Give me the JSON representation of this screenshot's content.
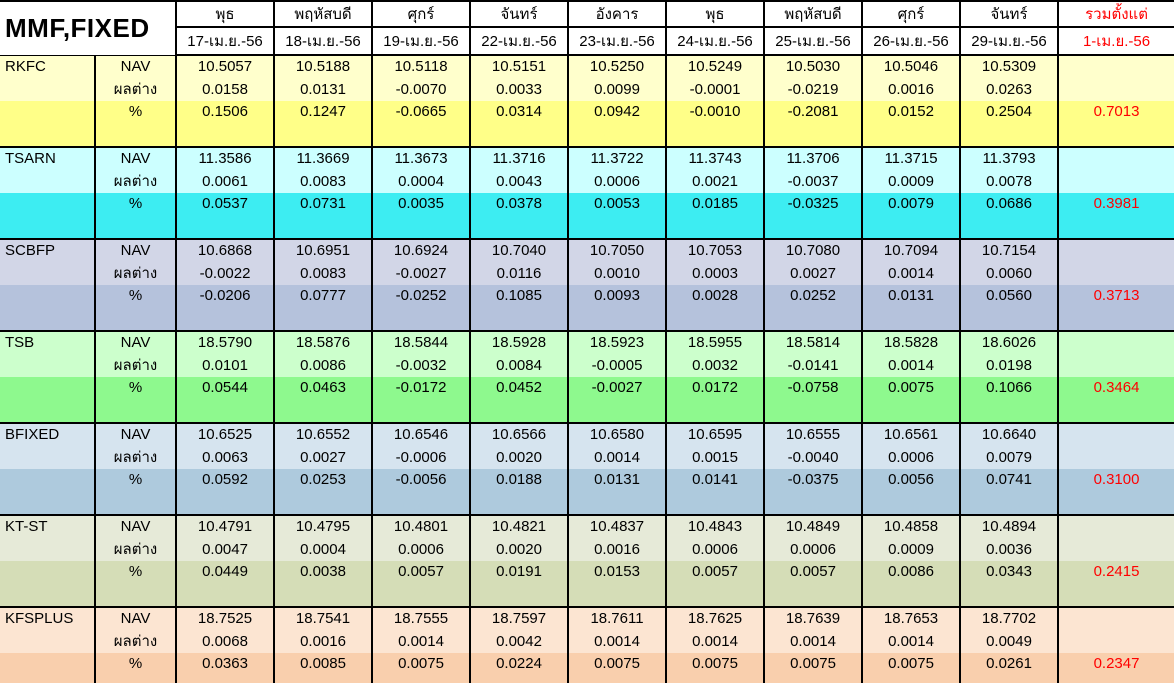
{
  "title": "MMF,FIXED",
  "colors": {
    "grid": "#000000",
    "background": "#FFFFFF",
    "total_text": "#FF0000"
  },
  "header": {
    "corner_label": "MMF,FIXED",
    "columns": [
      {
        "day": "พุธ",
        "date": "17-เม.ย.-56"
      },
      {
        "day": "พฤหัสบดี",
        "date": "18-เม.ย.-56"
      },
      {
        "day": "ศุกร์",
        "date": "19-เม.ย.-56"
      },
      {
        "day": "จันทร์",
        "date": "22-เม.ย.-56"
      },
      {
        "day": "อังคาร",
        "date": "23-เม.ย.-56"
      },
      {
        "day": "พุธ",
        "date": "24-เม.ย.-56"
      },
      {
        "day": "พฤหัสบดี",
        "date": "25-เม.ย.-56"
      },
      {
        "day": "ศุกร์",
        "date": "26-เม.ย.-56"
      },
      {
        "day": "จันทร์",
        "date": "29-เม.ย.-56"
      }
    ],
    "total_column": {
      "line1": "รวมตั้งแต่",
      "line2": "1-เม.ย.-56",
      "color": "#FF0000"
    }
  },
  "row_labels": {
    "nav": "NAV",
    "diff": "ผลต่าง",
    "pct": "%"
  },
  "funds": [
    {
      "name": "RKFC",
      "colors": {
        "pale": "#FFFFCC",
        "bright": "#FFFF88"
      },
      "nav": [
        "10.5057",
        "10.5188",
        "10.5118",
        "10.5151",
        "10.5250",
        "10.5249",
        "10.5030",
        "10.5046",
        "10.5309"
      ],
      "diff": [
        "0.0158",
        "0.0131",
        "-0.0070",
        "0.0033",
        "0.0099",
        "-0.0001",
        "-0.0219",
        "0.0016",
        "0.0263"
      ],
      "pct": [
        "0.1506",
        "0.1247",
        "-0.0665",
        "0.0314",
        "0.0942",
        "-0.0010",
        "-0.2081",
        "0.0152",
        "0.2504"
      ],
      "total": "0.7013"
    },
    {
      "name": "TSARN",
      "colors": {
        "pale": "#CCFFFF",
        "bright": "#3DEDF2"
      },
      "nav": [
        "11.3586",
        "11.3669",
        "11.3673",
        "11.3716",
        "11.3722",
        "11.3743",
        "11.3706",
        "11.3715",
        "11.3793"
      ],
      "diff": [
        "0.0061",
        "0.0083",
        "0.0004",
        "0.0043",
        "0.0006",
        "0.0021",
        "-0.0037",
        "0.0009",
        "0.0078"
      ],
      "pct": [
        "0.0537",
        "0.0731",
        "0.0035",
        "0.0378",
        "0.0053",
        "0.0185",
        "-0.0325",
        "0.0079",
        "0.0686"
      ],
      "total": "0.3981"
    },
    {
      "name": "SCBFP",
      "colors": {
        "pale": "#D2D6E7",
        "bright": "#B5C2DC"
      },
      "nav": [
        "10.6868",
        "10.6951",
        "10.6924",
        "10.7040",
        "10.7050",
        "10.7053",
        "10.7080",
        "10.7094",
        "10.7154"
      ],
      "diff": [
        "-0.0022",
        "0.0083",
        "-0.0027",
        "0.0116",
        "0.0010",
        "0.0003",
        "0.0027",
        "0.0014",
        "0.0060"
      ],
      "pct": [
        "-0.0206",
        "0.0777",
        "-0.0252",
        "0.1085",
        "0.0093",
        "0.0028",
        "0.0252",
        "0.0131",
        "0.0560"
      ],
      "total": "0.3713"
    },
    {
      "name": "TSB",
      "colors": {
        "pale": "#CCFFCC",
        "bright": "#8EF98E"
      },
      "nav": [
        "18.5790",
        "18.5876",
        "18.5844",
        "18.5928",
        "18.5923",
        "18.5955",
        "18.5814",
        "18.5828",
        "18.6026"
      ],
      "diff": [
        "0.0101",
        "0.0086",
        "-0.0032",
        "0.0084",
        "-0.0005",
        "0.0032",
        "-0.0141",
        "0.0014",
        "0.0198"
      ],
      "pct": [
        "0.0544",
        "0.0463",
        "-0.0172",
        "0.0452",
        "-0.0027",
        "0.0172",
        "-0.0758",
        "0.0075",
        "0.1066"
      ],
      "total": "0.3464"
    },
    {
      "name": "BFIXED",
      "colors": {
        "pale": "#D6E4EF",
        "bright": "#AECADD"
      },
      "nav": [
        "10.6525",
        "10.6552",
        "10.6546",
        "10.6566",
        "10.6580",
        "10.6595",
        "10.6555",
        "10.6561",
        "10.6640"
      ],
      "diff": [
        "0.0063",
        "0.0027",
        "-0.0006",
        "0.0020",
        "0.0014",
        "0.0015",
        "-0.0040",
        "0.0006",
        "0.0079"
      ],
      "pct": [
        "0.0592",
        "0.0253",
        "-0.0056",
        "0.0188",
        "0.0131",
        "0.0141",
        "-0.0375",
        "0.0056",
        "0.0741"
      ],
      "total": "0.3100"
    },
    {
      "name": "KT-ST",
      "colors": {
        "pale": "#E6EAD8",
        "bright": "#D5DDB7"
      },
      "nav": [
        "10.4791",
        "10.4795",
        "10.4801",
        "10.4821",
        "10.4837",
        "10.4843",
        "10.4849",
        "10.4858",
        "10.4894"
      ],
      "diff": [
        "0.0047",
        "0.0004",
        "0.0006",
        "0.0020",
        "0.0016",
        "0.0006",
        "0.0006",
        "0.0009",
        "0.0036"
      ],
      "pct": [
        "0.0449",
        "0.0038",
        "0.0057",
        "0.0191",
        "0.0153",
        "0.0057",
        "0.0057",
        "0.0086",
        "0.0343"
      ],
      "total": "0.2415"
    },
    {
      "name": "KFSPLUS",
      "colors": {
        "pale": "#FCE5D2",
        "bright": "#F9CFAD"
      },
      "nav": [
        "18.7525",
        "18.7541",
        "18.7555",
        "18.7597",
        "18.7611",
        "18.7625",
        "18.7639",
        "18.7653",
        "18.7702"
      ],
      "diff": [
        "0.0068",
        "0.0016",
        "0.0014",
        "0.0042",
        "0.0014",
        "0.0014",
        "0.0014",
        "0.0014",
        "0.0049"
      ],
      "pct": [
        "0.0363",
        "0.0085",
        "0.0075",
        "0.0224",
        "0.0075",
        "0.0075",
        "0.0075",
        "0.0075",
        "0.0261"
      ],
      "total": "0.2347"
    }
  ]
}
